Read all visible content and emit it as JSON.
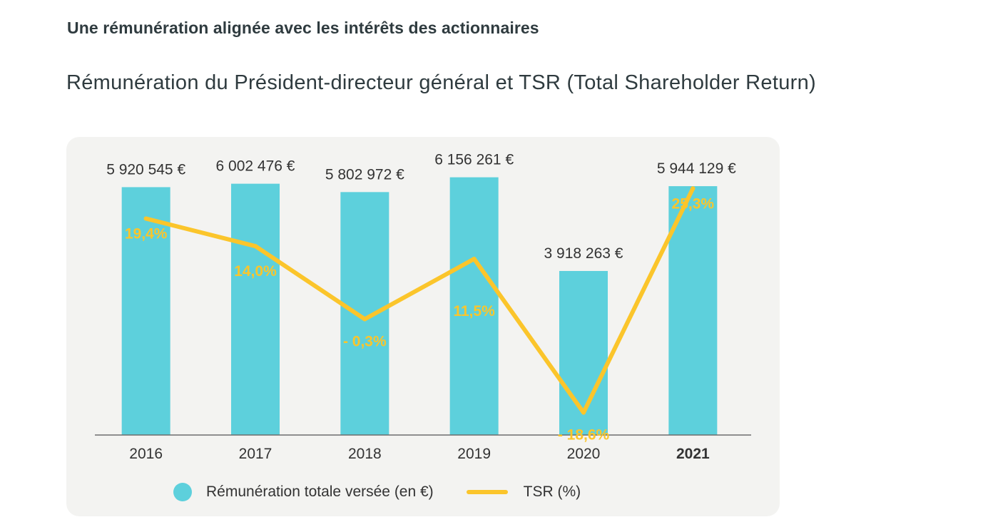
{
  "header": {
    "kicker": "Une rémunération alignée avec les intérêts des actionnaires",
    "title": "Rémunération du Président-directeur général et TSR (Total Shareholder Return)"
  },
  "colors": {
    "bar": "#5dd0dc",
    "line": "#fbc52b",
    "axis": "#6d6d6d",
    "text": "#333333"
  },
  "chart_data": {
    "type": "bar",
    "title": "Rémunération du Président-directeur général et TSR (Total Shareholder Return)",
    "categories": [
      "2016",
      "2017",
      "2018",
      "2019",
      "2020",
      "2021"
    ],
    "highlight_category": "2021",
    "series": [
      {
        "name": "Rémunération totale versée (en €)",
        "type": "bar",
        "values": [
          5920545,
          6002476,
          5802972,
          6156261,
          3918263,
          5944129
        ],
        "labels": [
          "5 920 545 €",
          "6 002 476 €",
          "5 802 972 €",
          "6 156 261 €",
          "3 918 263 €",
          "5 944 129 €"
        ]
      },
      {
        "name": "TSR (%)",
        "type": "line",
        "values": [
          19.4,
          14.0,
          -0.3,
          11.5,
          -18.6,
          25.3
        ],
        "labels": [
          "19,4%",
          "14,0%",
          "- 0,3%",
          "11,5%",
          "- 18,6%",
          "25,3%"
        ]
      }
    ],
    "bar_ylim": [
      0,
      6950000
    ],
    "line_ylim": [
      -23,
      34
    ],
    "legend": [
      {
        "label": "Rémunération totale versée (en €)",
        "kind": "dot"
      },
      {
        "label": "TSR (%)",
        "kind": "line"
      }
    ],
    "legend_position": "bottom"
  }
}
